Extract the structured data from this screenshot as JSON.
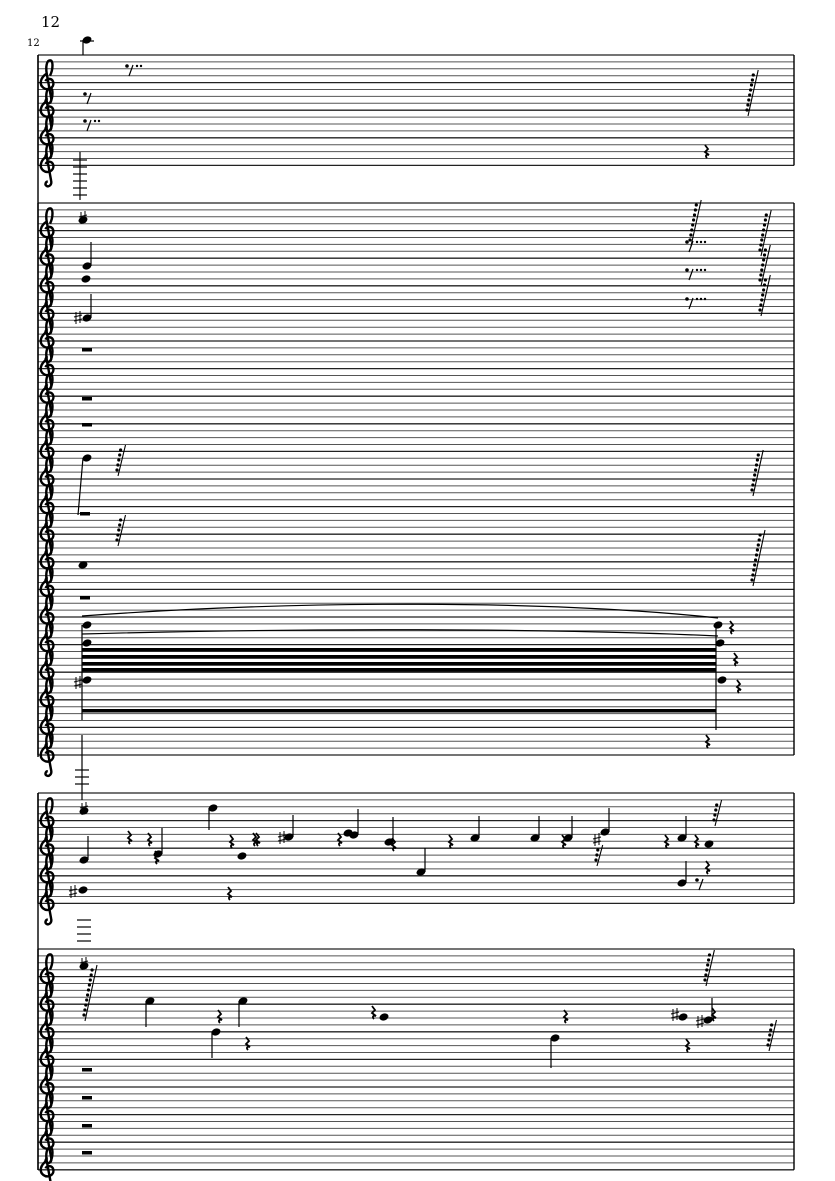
{
  "page": {
    "page_number": "12",
    "measure_number": "12"
  },
  "colors": {
    "ink": "#000000",
    "staff_line": "#555555"
  }
}
